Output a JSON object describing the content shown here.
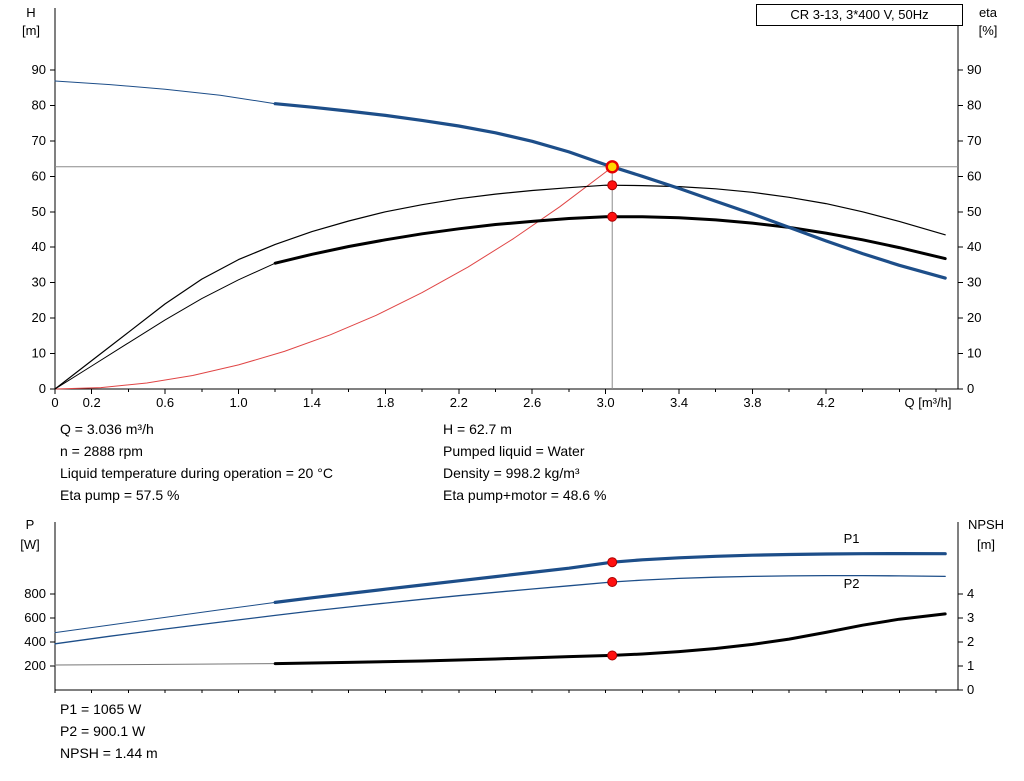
{
  "colors": {
    "curve_blue": "#1d4e89",
    "curve_black": "#000000",
    "curve_red": "#e04545",
    "crosshair": "#8c8c8c",
    "marker_red": "#ff1010",
    "marker_edge": "#aa0000",
    "duty_fill": "#ffd400",
    "duty_ring": "#e60000"
  },
  "info_top": {
    "left": [
      "Q = 3.036 m³/h",
      "n = 2888 rpm",
      "Liquid temperature during operation = 20 °C",
      "Eta pump = 57.5 %"
    ],
    "right": [
      "H = 62.7 m",
      "Pumped liquid = Water",
      "Density = 998.2 kg/m³",
      "Eta pump+motor = 48.6 %"
    ]
  },
  "info_bottom": [
    "P1 = 1065 W",
    "P2 = 900.1 W",
    "NPSH = 1.44 m"
  ],
  "chart_data": [
    {
      "type": "line",
      "title": "CR 3-13, 3*400 V, 50Hz",
      "x": {
        "label": "Q [m³/h]",
        "range": [
          0,
          4.92
        ],
        "minor_tick_step": 0.2,
        "ticks": [
          {
            "v": 0,
            "t": "0"
          },
          {
            "v": 0.2,
            "t": "0.2"
          },
          {
            "v": 0.6,
            "t": "0.6"
          },
          {
            "v": 1,
            "t": "1.0"
          },
          {
            "v": 1.4,
            "t": "1.4"
          },
          {
            "v": 1.8,
            "t": "1.8"
          },
          {
            "v": 2.2,
            "t": "2.2"
          },
          {
            "v": 2.6,
            "t": "2.6"
          },
          {
            "v": 3,
            "t": "3.0"
          },
          {
            "v": 3.4,
            "t": "3.4"
          },
          {
            "v": 3.8,
            "t": "3.8"
          },
          {
            "v": 4.2,
            "t": "4.2"
          }
        ]
      },
      "y_left": {
        "label": "H",
        "unit": "[m]",
        "range": [
          0,
          107.5
        ],
        "ticks": [
          0,
          10,
          20,
          30,
          40,
          50,
          60,
          70,
          80,
          90
        ]
      },
      "y_right": {
        "label": "eta",
        "unit": "[%]",
        "range": [
          0,
          107.5
        ],
        "ticks": [
          0,
          10,
          20,
          30,
          40,
          50,
          60,
          70,
          80,
          90
        ]
      },
      "crosshair": {
        "x": 3.036,
        "y": 62.7
      },
      "series": [
        {
          "name": "system-curve",
          "color": "#e04545",
          "width": 1,
          "axis": "left",
          "points": [
            [
              0,
              0
            ],
            [
              0.25,
              0.4
            ],
            [
              0.5,
              1.7
            ],
            [
              0.75,
              3.8
            ],
            [
              1,
              6.8
            ],
            [
              1.25,
              10.6
            ],
            [
              1.5,
              15.3
            ],
            [
              1.75,
              20.8
            ],
            [
              2,
              27.2
            ],
            [
              2.25,
              34.4
            ],
            [
              2.5,
              42.5
            ],
            [
              2.75,
              51.4
            ],
            [
              3,
              61.2
            ],
            [
              3.036,
              62.7
            ]
          ]
        },
        {
          "name": "eta-pump-curve",
          "color": "#000000",
          "width": 1.2,
          "axis": "left",
          "points": [
            [
              0,
              0
            ],
            [
              0.2,
              8
            ],
            [
              0.4,
              16
            ],
            [
              0.6,
              24
            ],
            [
              0.8,
              31
            ],
            [
              1,
              36.5
            ],
            [
              1.2,
              40.8
            ],
            [
              1.4,
              44.4
            ],
            [
              1.6,
              47.4
            ],
            [
              1.8,
              50
            ],
            [
              2,
              52
            ],
            [
              2.2,
              53.7
            ],
            [
              2.4,
              55
            ],
            [
              2.6,
              56
            ],
            [
              2.8,
              56.8
            ],
            [
              3,
              57.5
            ],
            [
              3.2,
              57.4
            ],
            [
              3.4,
              57.1
            ],
            [
              3.6,
              56.5
            ],
            [
              3.8,
              55.5
            ],
            [
              4,
              54.1
            ],
            [
              4.2,
              52.3
            ],
            [
              4.4,
              50
            ],
            [
              4.6,
              47.3
            ],
            [
              4.85,
              43.5
            ]
          ]
        },
        {
          "name": "eta-pump-motor-curve-thin",
          "color": "#000000",
          "width": 1,
          "axis": "left",
          "points": [
            [
              0,
              0
            ],
            [
              0.2,
              6.5
            ],
            [
              0.4,
              13
            ],
            [
              0.6,
              19.5
            ],
            [
              0.8,
              25.5
            ],
            [
              1,
              30.8
            ],
            [
              1.2,
              35.5
            ]
          ]
        },
        {
          "name": "eta-pump-motor-curve",
          "color": "#000000",
          "width": 3,
          "axis": "left",
          "points": [
            [
              1.2,
              35.5
            ],
            [
              1.4,
              38
            ],
            [
              1.6,
              40.2
            ],
            [
              1.8,
              42.1
            ],
            [
              2,
              43.8
            ],
            [
              2.2,
              45.2
            ],
            [
              2.4,
              46.4
            ],
            [
              2.6,
              47.3
            ],
            [
              2.8,
              48.1
            ],
            [
              3,
              48.6
            ],
            [
              3.2,
              48.6
            ],
            [
              3.4,
              48.3
            ],
            [
              3.6,
              47.7
            ],
            [
              3.8,
              46.8
            ],
            [
              4,
              45.6
            ],
            [
              4.2,
              44
            ],
            [
              4.4,
              42.1
            ],
            [
              4.6,
              39.9
            ],
            [
              4.85,
              36.8
            ]
          ]
        },
        {
          "name": "qh-curve-thin",
          "color": "#1d4e89",
          "width": 1,
          "axis": "left",
          "points": [
            [
              0,
              86.9
            ],
            [
              0.3,
              85.9
            ],
            [
              0.6,
              84.6
            ],
            [
              0.9,
              82.9
            ],
            [
              1.2,
              80.5
            ]
          ]
        },
        {
          "name": "qh-curve",
          "color": "#1d4e89",
          "width": 3.2,
          "axis": "left",
          "points": [
            [
              1.2,
              80.5
            ],
            [
              1.4,
              79.5
            ],
            [
              1.6,
              78.4
            ],
            [
              1.8,
              77.2
            ],
            [
              2,
              75.8
            ],
            [
              2.2,
              74.2
            ],
            [
              2.4,
              72.3
            ],
            [
              2.6,
              69.9
            ],
            [
              2.8,
              66.9
            ],
            [
              3,
              63.3
            ],
            [
              3.2,
              60
            ],
            [
              3.4,
              56.6
            ],
            [
              3.6,
              53
            ],
            [
              3.8,
              49.4
            ],
            [
              4,
              45.6
            ],
            [
              4.2,
              41.8
            ],
            [
              4.4,
              38.2
            ],
            [
              4.6,
              34.9
            ],
            [
              4.85,
              31.3
            ]
          ]
        }
      ],
      "markers": [
        {
          "name": "duty-point",
          "x": 3.036,
          "y": 62.7,
          "axis": "left",
          "style": "duty"
        },
        {
          "name": "eta-pump-point",
          "x": 3.036,
          "y": 57.5,
          "axis": "left",
          "style": "dot"
        },
        {
          "name": "eta-pump-motor-point",
          "x": 3.036,
          "y": 48.6,
          "axis": "left",
          "style": "dot"
        }
      ],
      "annotations": []
    },
    {
      "type": "line",
      "title": "",
      "x": {
        "label": "",
        "range": [
          0,
          4.92
        ],
        "minor_tick_step": 0.2,
        "ticks": []
      },
      "y_left": {
        "label": "P",
        "unit": "[W]",
        "range": [
          0,
          1400
        ],
        "ticks": [
          200,
          400,
          600,
          800
        ]
      },
      "y_right": {
        "label": "NPSH",
        "unit": "[m]",
        "range": [
          0,
          7
        ],
        "ticks": [
          0,
          1,
          2,
          3,
          4
        ]
      },
      "series": [
        {
          "name": "npsh-curve-thin",
          "color": "#777777",
          "width": 1,
          "axis": "right",
          "points": [
            [
              0,
              1.04
            ],
            [
              0.4,
              1.06
            ],
            [
              0.8,
              1.08
            ],
            [
              1.2,
              1.1
            ]
          ]
        },
        {
          "name": "npsh-curve",
          "color": "#000000",
          "width": 3,
          "axis": "right",
          "points": [
            [
              1.2,
              1.1
            ],
            [
              1.6,
              1.15
            ],
            [
              2,
              1.21
            ],
            [
              2.4,
              1.29
            ],
            [
              2.8,
              1.39
            ],
            [
              3.036,
              1.44
            ],
            [
              3.2,
              1.5
            ],
            [
              3.4,
              1.6
            ],
            [
              3.6,
              1.73
            ],
            [
              3.8,
              1.9
            ],
            [
              4,
              2.12
            ],
            [
              4.2,
              2.4
            ],
            [
              4.4,
              2.7
            ],
            [
              4.6,
              2.95
            ],
            [
              4.85,
              3.17
            ]
          ]
        },
        {
          "name": "p2-curve",
          "color": "#1d4e89",
          "width": 1.3,
          "axis": "left",
          "points": [
            [
              0,
              385
            ],
            [
              0.3,
              448
            ],
            [
              0.6,
              508
            ],
            [
              0.9,
              566
            ],
            [
              1.2,
              622
            ],
            [
              1.4,
              658
            ],
            [
              1.6,
              692
            ],
            [
              1.8,
              724
            ],
            [
              2,
              756
            ],
            [
              2.2,
              786
            ],
            [
              2.4,
              814
            ],
            [
              2.6,
              842
            ],
            [
              2.8,
              868
            ],
            [
              3.036,
              900
            ],
            [
              3.2,
              916
            ],
            [
              3.4,
              930
            ],
            [
              3.6,
              940
            ],
            [
              3.8,
              947
            ],
            [
              4,
              951
            ],
            [
              4.2,
              953
            ],
            [
              4.4,
              953
            ],
            [
              4.6,
              951
            ],
            [
              4.85,
              947
            ]
          ]
        },
        {
          "name": "p1-curve-thin",
          "color": "#1d4e89",
          "width": 1,
          "axis": "left",
          "points": [
            [
              0,
              478
            ],
            [
              0.3,
              542
            ],
            [
              0.6,
              605
            ],
            [
              0.9,
              668
            ],
            [
              1.2,
              730
            ]
          ]
        },
        {
          "name": "p1-curve",
          "color": "#1d4e89",
          "width": 3.2,
          "axis": "left",
          "points": [
            [
              1.2,
              730
            ],
            [
              1.4,
              768
            ],
            [
              1.6,
              804
            ],
            [
              1.8,
              840
            ],
            [
              2,
              875
            ],
            [
              2.2,
              910
            ],
            [
              2.4,
              945
            ],
            [
              2.6,
              980
            ],
            [
              2.8,
              1015
            ],
            [
              3.036,
              1065
            ],
            [
              3.2,
              1085
            ],
            [
              3.4,
              1102
            ],
            [
              3.6,
              1114
            ],
            [
              3.8,
              1123
            ],
            [
              4,
              1129
            ],
            [
              4.2,
              1133
            ],
            [
              4.4,
              1136
            ],
            [
              4.6,
              1137
            ],
            [
              4.85,
              1136
            ]
          ]
        }
      ],
      "markers": [
        {
          "name": "p1-point",
          "x": 3.036,
          "y": 1065,
          "axis": "left",
          "style": "dot"
        },
        {
          "name": "p2-point",
          "x": 3.036,
          "y": 900.1,
          "axis": "left",
          "style": "dot"
        },
        {
          "name": "npsh-point",
          "x": 3.036,
          "y": 1.44,
          "axis": "right",
          "style": "dot"
        }
      ],
      "annotations": [
        {
          "text": "P1",
          "x": 4.34,
          "y": 1225,
          "axis": "left",
          "color": "#1d4e89"
        },
        {
          "text": "P2",
          "x": 4.34,
          "y": 850,
          "axis": "left",
          "color": "#1d4e89"
        }
      ]
    }
  ]
}
